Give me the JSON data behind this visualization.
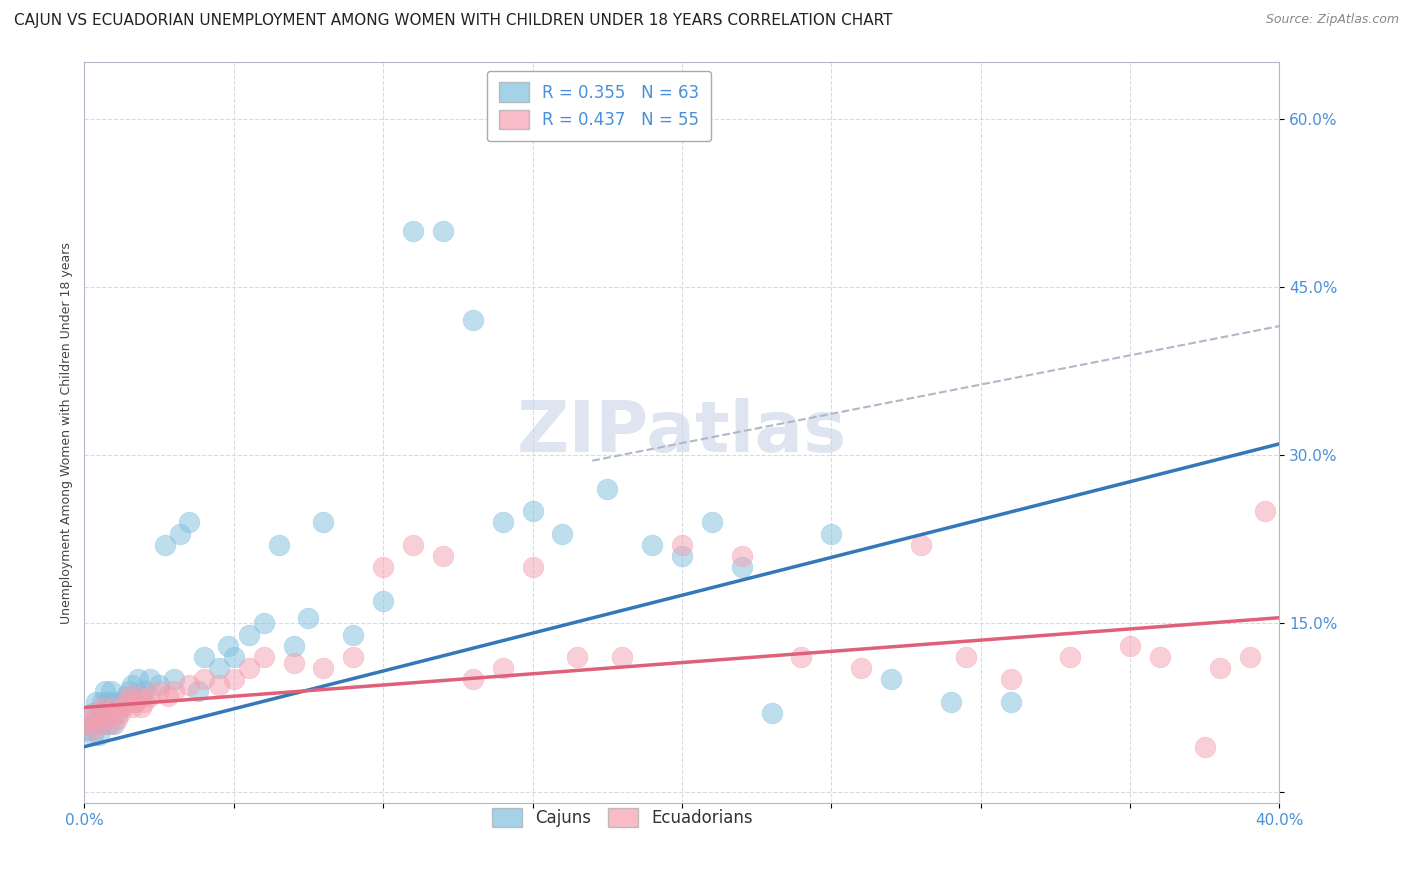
{
  "title": "CAJUN VS ECUADORIAN UNEMPLOYMENT AMONG WOMEN WITH CHILDREN UNDER 18 YEARS CORRELATION CHART",
  "source": "Source: ZipAtlas.com",
  "ylabel": "Unemployment Among Women with Children Under 18 years",
  "cajun_R": "0.355",
  "cajun_N": "63",
  "ecuadorian_R": "0.437",
  "ecuadorian_N": "55",
  "cajun_color": "#7fbfdf",
  "ecuadorian_color": "#f4a0b0",
  "cajun_line_color": "#3478b8",
  "ecuadorian_line_color": "#e0607a",
  "gray_dash_color": "#b0b8c8",
  "background_color": "#ffffff",
  "grid_color": "#d0d8e0",
  "title_fontsize": 11,
  "axis_label_fontsize": 9,
  "tick_label_fontsize": 11,
  "legend_fontsize": 12,
  "watermark_text": "ZIPatlas",
  "watermark_fontsize": 52,
  "xlim": [
    0.0,
    0.4
  ],
  "ylim": [
    -0.01,
    0.65
  ],
  "cajun_line_x0": 0.0,
  "cajun_line_y0": 0.04,
  "cajun_line_x1": 0.4,
  "cajun_line_y1": 0.31,
  "ecuadorian_line_x0": 0.0,
  "ecuadorian_line_y0": 0.075,
  "ecuadorian_line_x1": 0.4,
  "ecuadorian_line_y1": 0.155,
  "gray_line_x0": 0.17,
  "gray_line_y0": 0.295,
  "gray_line_x1": 0.4,
  "gray_line_y1": 0.415,
  "cajun_scatter_x": [
    0.001,
    0.002,
    0.003,
    0.003,
    0.004,
    0.004,
    0.005,
    0.005,
    0.006,
    0.006,
    0.007,
    0.007,
    0.008,
    0.008,
    0.009,
    0.009,
    0.01,
    0.01,
    0.011,
    0.012,
    0.013,
    0.014,
    0.015,
    0.016,
    0.017,
    0.018,
    0.019,
    0.02,
    0.022,
    0.025,
    0.027,
    0.03,
    0.032,
    0.035,
    0.038,
    0.04,
    0.045,
    0.048,
    0.05,
    0.055,
    0.06,
    0.065,
    0.07,
    0.075,
    0.08,
    0.09,
    0.1,
    0.11,
    0.12,
    0.13,
    0.14,
    0.15,
    0.16,
    0.175,
    0.19,
    0.2,
    0.21,
    0.22,
    0.23,
    0.25,
    0.27,
    0.29,
    0.31
  ],
  "cajun_scatter_y": [
    0.055,
    0.06,
    0.05,
    0.07,
    0.06,
    0.08,
    0.05,
    0.07,
    0.06,
    0.08,
    0.07,
    0.09,
    0.06,
    0.08,
    0.07,
    0.09,
    0.06,
    0.08,
    0.07,
    0.075,
    0.08,
    0.085,
    0.09,
    0.095,
    0.08,
    0.1,
    0.085,
    0.09,
    0.1,
    0.095,
    0.22,
    0.1,
    0.23,
    0.24,
    0.09,
    0.12,
    0.11,
    0.13,
    0.12,
    0.14,
    0.15,
    0.22,
    0.13,
    0.155,
    0.24,
    0.14,
    0.17,
    0.5,
    0.5,
    0.42,
    0.24,
    0.25,
    0.23,
    0.27,
    0.22,
    0.21,
    0.24,
    0.2,
    0.07,
    0.23,
    0.1,
    0.08,
    0.08
  ],
  "ecuadorian_scatter_x": [
    0.001,
    0.002,
    0.003,
    0.004,
    0.005,
    0.006,
    0.007,
    0.008,
    0.009,
    0.01,
    0.011,
    0.012,
    0.013,
    0.014,
    0.015,
    0.016,
    0.017,
    0.018,
    0.019,
    0.02,
    0.022,
    0.025,
    0.028,
    0.03,
    0.035,
    0.04,
    0.045,
    0.05,
    0.055,
    0.06,
    0.07,
    0.08,
    0.09,
    0.1,
    0.11,
    0.12,
    0.13,
    0.14,
    0.15,
    0.165,
    0.18,
    0.2,
    0.22,
    0.24,
    0.26,
    0.28,
    0.295,
    0.31,
    0.33,
    0.35,
    0.36,
    0.375,
    0.38,
    0.39,
    0.395
  ],
  "ecuadorian_scatter_y": [
    0.06,
    0.065,
    0.055,
    0.07,
    0.06,
    0.075,
    0.065,
    0.07,
    0.06,
    0.075,
    0.065,
    0.07,
    0.075,
    0.08,
    0.085,
    0.075,
    0.08,
    0.085,
    0.075,
    0.08,
    0.085,
    0.09,
    0.085,
    0.09,
    0.095,
    0.1,
    0.095,
    0.1,
    0.11,
    0.12,
    0.115,
    0.11,
    0.12,
    0.2,
    0.22,
    0.21,
    0.1,
    0.11,
    0.2,
    0.12,
    0.12,
    0.22,
    0.21,
    0.12,
    0.11,
    0.22,
    0.12,
    0.1,
    0.12,
    0.13,
    0.12,
    0.04,
    0.11,
    0.12,
    0.25
  ]
}
